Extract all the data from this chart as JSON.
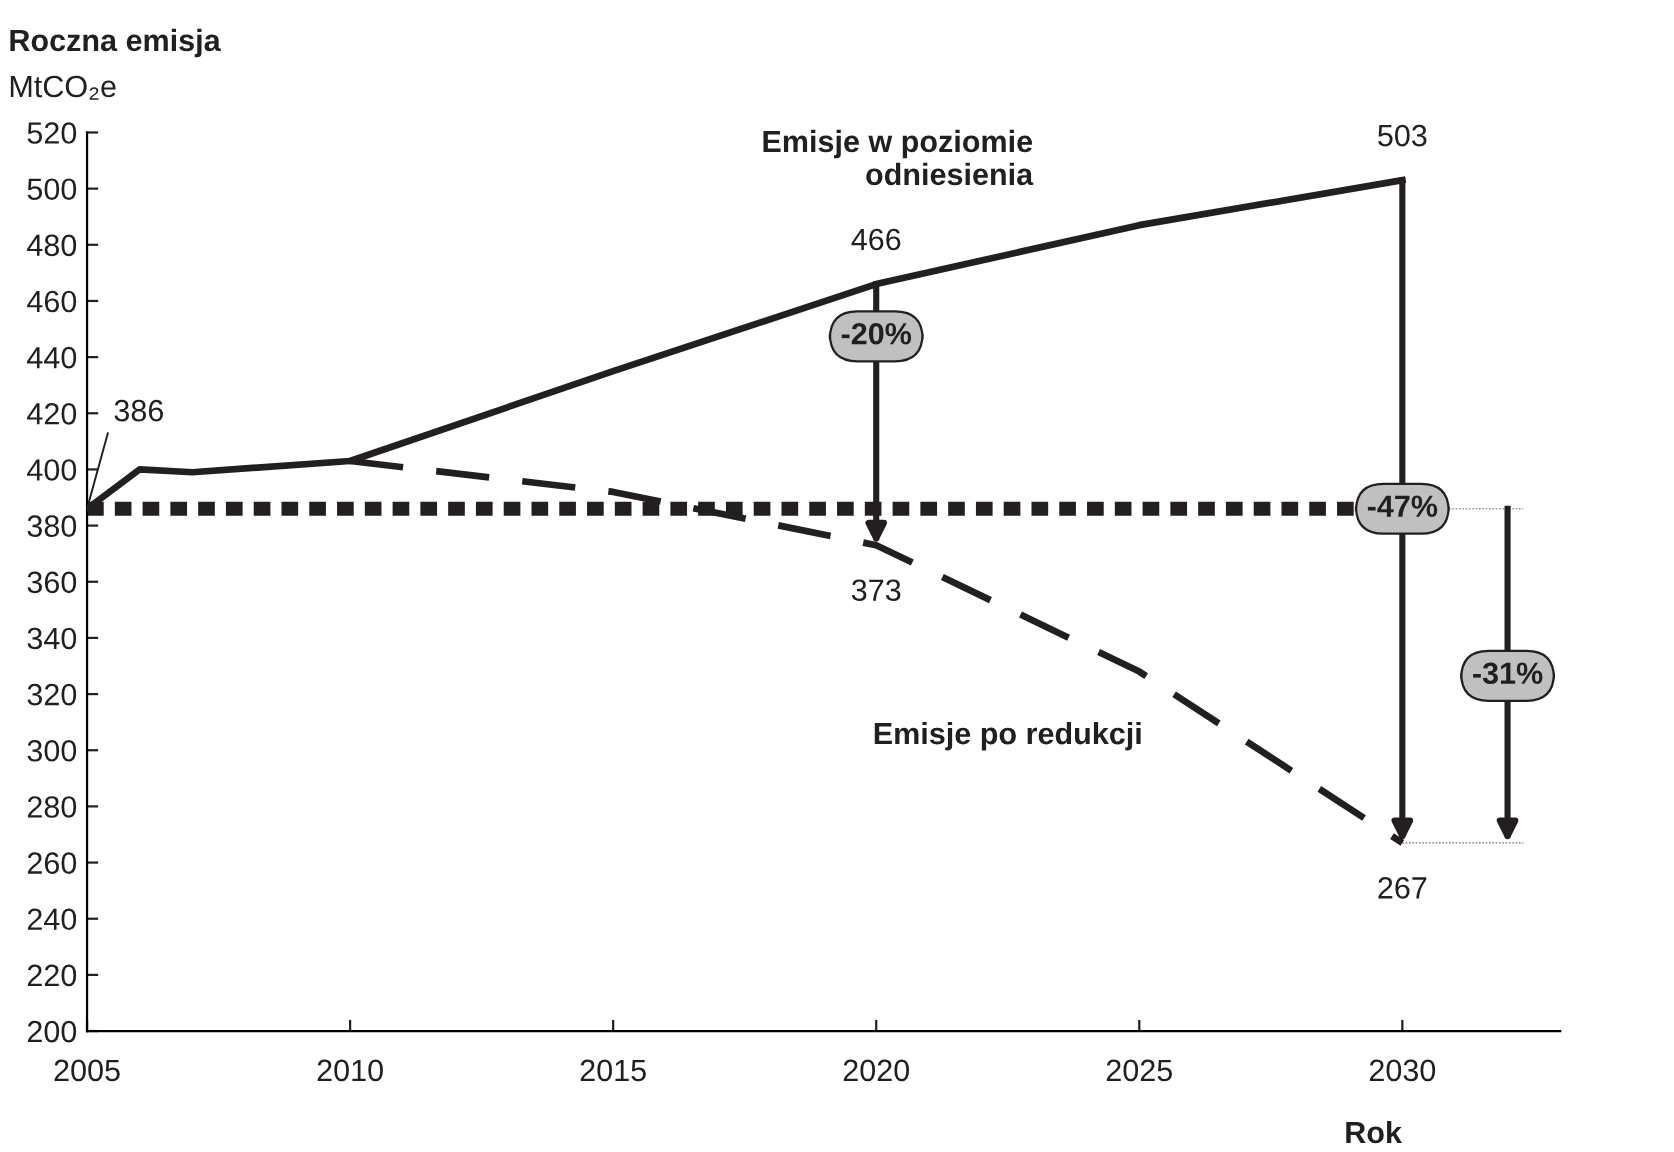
{
  "chart_data": {
    "type": "line",
    "title": "Roczna emisja",
    "ylabel": "MtCO₂e",
    "xlabel": "Rok",
    "series": [
      {
        "name": "Emisje w poziomie\nodniesienia",
        "color": "#231f20",
        "line_style": "solid",
        "x": [
          2005,
          2006,
          2007,
          2010,
          2015,
          2020,
          2025,
          2030
        ],
        "values": [
          386,
          400,
          399,
          403,
          435,
          466,
          487,
          503
        ]
      },
      {
        "name": "Emisje po redukcji",
        "color": "#231f20",
        "line_style": "dashed",
        "x": [
          2010,
          2015,
          2020,
          2025,
          2030
        ],
        "values": [
          403,
          392,
          373,
          328,
          267
        ]
      }
    ],
    "ref_lines": [
      {
        "axis": "y",
        "value": 386,
        "color": "#231f20",
        "line_style": "dotted"
      }
    ],
    "annotations": [
      {
        "text": "386",
        "x": 2005,
        "y": 386
      },
      {
        "text": "466",
        "x": 2020,
        "y": 466
      },
      {
        "text": "373",
        "x": 2020,
        "y": 373
      },
      {
        "text": "503",
        "x": 2030,
        "y": 503
      },
      {
        "text": "267",
        "x": 2030,
        "y": 267
      },
      {
        "text": "-20%",
        "x": 2020,
        "y": 373
      },
      {
        "text": "-47%",
        "x": 2030,
        "y": 267
      },
      "-31%"
    ],
    "xlim": [
      2005,
      2033
    ],
    "xticks": [
      2005,
      2010,
      2015,
      2020,
      2025,
      2030
    ],
    "ylim": [
      200,
      520
    ],
    "yticks": [
      200,
      220,
      240,
      260,
      280,
      300,
      320,
      340,
      360,
      380,
      400,
      420,
      440,
      460,
      480,
      500,
      520
    ],
    "grid": false,
    "marker": "none"
  }
}
